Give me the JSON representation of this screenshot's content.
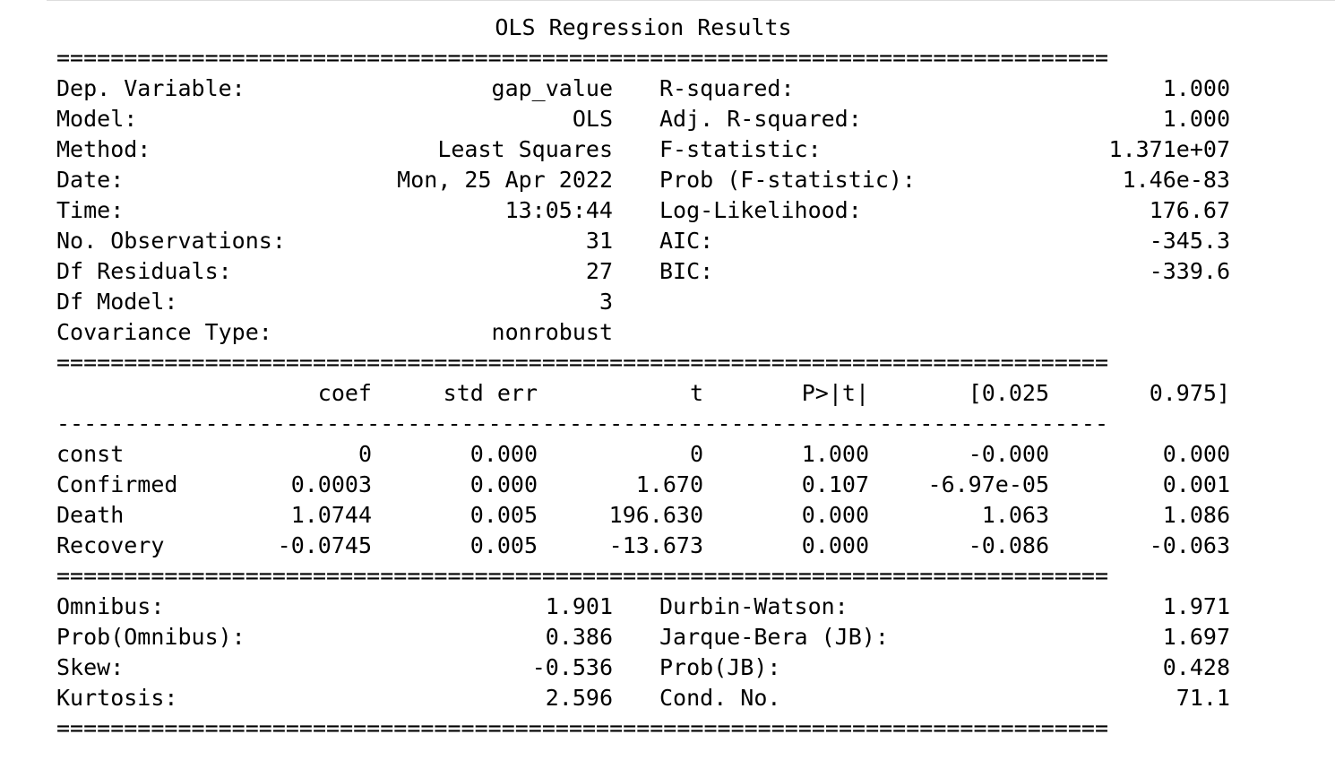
{
  "title": "OLS Regression Results",
  "double_rule": "==============================================================================",
  "single_rule": "------------------------------------------------------------------------------",
  "header": [
    {
      "l_label": "Dep. Variable:",
      "l_value": "gap_value",
      "r_label": "R-squared:",
      "r_value": "1.000"
    },
    {
      "l_label": "Model:",
      "l_value": "OLS",
      "r_label": "Adj. R-squared:",
      "r_value": "1.000"
    },
    {
      "l_label": "Method:",
      "l_value": "Least Squares",
      "r_label": "F-statistic:",
      "r_value": "1.371e+07"
    },
    {
      "l_label": "Date:",
      "l_value": "Mon, 25 Apr 2022",
      "r_label": "Prob (F-statistic):",
      "r_value": "1.46e-83"
    },
    {
      "l_label": "Time:",
      "l_value": "13:05:44",
      "r_label": "Log-Likelihood:",
      "r_value": "176.67"
    },
    {
      "l_label": "No. Observations:",
      "l_value": "31",
      "r_label": "AIC:",
      "r_value": "-345.3"
    },
    {
      "l_label": "Df Residuals:",
      "l_value": "27",
      "r_label": "BIC:",
      "r_value": "-339.6"
    },
    {
      "l_label": "Df Model:",
      "l_value": "3",
      "r_label": "",
      "r_value": ""
    },
    {
      "l_label": "Covariance Type:",
      "l_value": "nonrobust",
      "r_label": "",
      "r_value": ""
    }
  ],
  "coef_columns": [
    "coef",
    "std err",
    "t",
    "P>|t|",
    "[0.025",
    "0.975]"
  ],
  "coef_rows": [
    {
      "name": "const",
      "coef": "0",
      "std_err": "0.000",
      "t": "0",
      "p": "1.000",
      "lo": "-0.000",
      "hi": "0.000"
    },
    {
      "name": "Confirmed",
      "coef": "0.0003",
      "std_err": "0.000",
      "t": "1.670",
      "p": "0.107",
      "lo": "-6.97e-05",
      "hi": "0.001"
    },
    {
      "name": "Death",
      "coef": "1.0744",
      "std_err": "0.005",
      "t": "196.630",
      "p": "0.000",
      "lo": "1.063",
      "hi": "1.086"
    },
    {
      "name": "Recovery",
      "coef": "-0.0745",
      "std_err": "0.005",
      "t": "-13.673",
      "p": "0.000",
      "lo": "-0.086",
      "hi": "-0.063"
    }
  ],
  "diagnostics": [
    {
      "l_label": "Omnibus:",
      "l_value": "1.901",
      "r_label": "Durbin-Watson:",
      "r_value": "1.971"
    },
    {
      "l_label": "Prob(Omnibus):",
      "l_value": "0.386",
      "r_label": "Jarque-Bera (JB):",
      "r_value": "1.697"
    },
    {
      "l_label": "Skew:",
      "l_value": "-0.536",
      "r_label": "Prob(JB):",
      "r_value": "0.428"
    },
    {
      "l_label": "Kurtosis:",
      "l_value": "2.596",
      "r_label": "Cond. No.",
      "r_value": "71.1"
    }
  ]
}
